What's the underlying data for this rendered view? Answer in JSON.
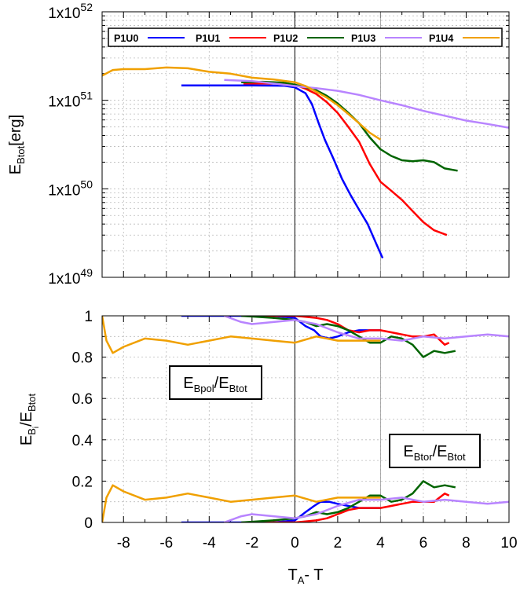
{
  "chart_data": [
    {
      "type": "line",
      "panel": "top",
      "ylabel_main": "E",
      "ylabel_sub": "Btot",
      "ylabel_tail": "[erg]",
      "yscale": "log",
      "ylim": [
        1e+49,
        1e+52
      ],
      "xlim": [
        -9,
        10
      ],
      "yticks": [
        {
          "base": "1x10",
          "exp": "49",
          "value": 1e+49
        },
        {
          "base": "1x10",
          "exp": "50",
          "value": 1e+50
        },
        {
          "base": "1x10",
          "exp": "51",
          "value": 1e+51
        },
        {
          "base": "1x10",
          "exp": "52",
          "value": 1e+52
        }
      ],
      "vlines": [
        0,
        4
      ],
      "legend": [
        "P1U0",
        "P1U1",
        "P1U2",
        "P1U3",
        "P1U4"
      ],
      "legend_position": "top",
      "series": [
        {
          "name": "P1U0",
          "color": "#0000ff",
          "points": [
            [
              -5.3,
              1.47e+51
            ],
            [
              -2,
              1.47e+51
            ],
            [
              -0.5,
              1.46e+51
            ],
            [
              0,
              1.4e+51
            ],
            [
              0.5,
              1.2e+51
            ],
            [
              0.8,
              9e+50
            ],
            [
              1.1,
              5.6e+50
            ],
            [
              1.4,
              3.6e+50
            ],
            [
              1.8,
              2.2e+50
            ],
            [
              2.2,
              1.3e+50
            ],
            [
              2.6,
              8.5e+49
            ],
            [
              3,
              5.8e+49
            ],
            [
              3.4,
              4e+49
            ],
            [
              3.8,
              2.4e+49
            ],
            [
              4.1,
              1.65e+49
            ]
          ]
        },
        {
          "name": "P1U1",
          "color": "#ff0000",
          "points": [
            [
              -2.4,
              1.55e+51
            ],
            [
              -1,
              1.55e+51
            ],
            [
              0,
              1.5e+51
            ],
            [
              0.5,
              1.35e+51
            ],
            [
              1,
              1.18e+51
            ],
            [
              1.5,
              9.5e+50
            ],
            [
              2,
              7.2e+50
            ],
            [
              2.5,
              5e+50
            ],
            [
              3,
              3.4e+50
            ],
            [
              3.5,
              1.9e+50
            ],
            [
              4,
              1.2e+50
            ],
            [
              4.5,
              9.5e+49
            ],
            [
              5,
              7.5e+49
            ],
            [
              5.5,
              5.6e+49
            ],
            [
              6,
              4.2e+49
            ],
            [
              6.5,
              3.4e+49
            ],
            [
              7.1,
              3e+49
            ]
          ]
        },
        {
          "name": "P1U2",
          "color": "#006400",
          "points": [
            [
              -2.5,
              1.6e+51
            ],
            [
              -1.5,
              1.62e+51
            ],
            [
              -0.5,
              1.58e+51
            ],
            [
              0,
              1.5e+51
            ],
            [
              0.5,
              1.4e+51
            ],
            [
              1,
              1.3e+51
            ],
            [
              1.5,
              1.12e+51
            ],
            [
              2,
              9.2e+50
            ],
            [
              2.5,
              7.2e+50
            ],
            [
              3,
              5.5e+50
            ],
            [
              3.5,
              3.8e+50
            ],
            [
              4,
              2.8e+50
            ],
            [
              4.5,
              2.35e+50
            ],
            [
              5,
              2.1e+50
            ],
            [
              5.5,
              2.05e+50
            ],
            [
              6,
              2.1e+50
            ],
            [
              6.5,
              2e+50
            ],
            [
              7,
              1.7e+50
            ],
            [
              7.6,
              1.6e+50
            ]
          ]
        },
        {
          "name": "P1U3",
          "color": "#b884ff",
          "points": [
            [
              -3.3,
              1.7e+51
            ],
            [
              -2,
              1.65e+51
            ],
            [
              -1,
              1.55e+51
            ],
            [
              0,
              1.45e+51
            ],
            [
              1,
              1.37e+51
            ],
            [
              2,
              1.28e+51
            ],
            [
              3,
              1.15e+51
            ],
            [
              4,
              1e+51
            ],
            [
              5,
              8.8e+50
            ],
            [
              6,
              7.6e+50
            ],
            [
              7,
              6.7e+50
            ],
            [
              8,
              5.9e+50
            ],
            [
              9,
              5.4e+50
            ],
            [
              10,
              4.9e+50
            ]
          ]
        },
        {
          "name": "P1U4",
          "color": "#f0a000",
          "points": [
            [
              -9,
              1.9e+51
            ],
            [
              -8.5,
              2.2e+51
            ],
            [
              -8,
              2.25e+51
            ],
            [
              -7,
              2.25e+51
            ],
            [
              -6,
              2.35e+51
            ],
            [
              -5,
              2.3e+51
            ],
            [
              -4,
              2.1e+51
            ],
            [
              -3,
              2e+51
            ],
            [
              -2,
              1.8e+51
            ],
            [
              -1,
              1.72e+51
            ],
            [
              0,
              1.6e+51
            ],
            [
              0.5,
              1.45e+51
            ],
            [
              1,
              1.25e+51
            ],
            [
              1.5,
              1.07e+51
            ],
            [
              2,
              8.8e+50
            ],
            [
              2.5,
              7e+50
            ],
            [
              3,
              5.5e+50
            ],
            [
              3.5,
              4.3e+50
            ],
            [
              4,
              3.6e+50
            ]
          ]
        }
      ]
    },
    {
      "type": "line",
      "panel": "bottom",
      "ylabel_main": "E",
      "ylabel_sub": "B",
      "ylabel_subsub": "i",
      "ylabel_tail": "/E",
      "ylabel_sub2": "Btot",
      "xlabel_main": "T",
      "xlabel_sub": "A",
      "xlabel_tail": "- T",
      "ylim": [
        0,
        1
      ],
      "xlim": [
        -9,
        10
      ],
      "yticks": [
        "0",
        "0.2",
        "0.4",
        "0.6",
        "0.8",
        "1"
      ],
      "xticks": [
        "-8",
        "-6",
        "-4",
        "-2",
        "0",
        "2",
        "4",
        "6",
        "8",
        "10"
      ],
      "vlines": [
        0,
        4
      ],
      "annotations": [
        {
          "main": "E",
          "sub": "Bpol",
          "mid": "/E",
          "sub2": "Btot",
          "target": "upper curves"
        },
        {
          "main": "E",
          "sub": "Btor",
          "mid": "/E",
          "sub2": "Btot",
          "target": "lower curves"
        }
      ],
      "series": [
        {
          "name": "P1U0 pol",
          "color": "#0000ff",
          "points": [
            [
              -5.3,
              1
            ],
            [
              -1,
              1
            ],
            [
              0,
              0.99
            ],
            [
              0.5,
              0.95
            ],
            [
              0.9,
              0.93
            ],
            [
              1.2,
              0.9
            ],
            [
              1.6,
              0.89
            ],
            [
              2,
              0.9
            ],
            [
              2.5,
              0.92
            ],
            [
              3,
              0.93
            ],
            [
              3.5,
              0.93
            ],
            [
              4,
              0.93
            ]
          ]
        },
        {
          "name": "P1U0 tor",
          "color": "#0000ff",
          "points": [
            [
              -5.3,
              0
            ],
            [
              -1,
              0
            ],
            [
              0,
              0.01
            ],
            [
              0.5,
              0.05
            ],
            [
              0.9,
              0.08
            ],
            [
              1.2,
              0.1
            ],
            [
              1.6,
              0.1
            ],
            [
              2,
              0.09
            ],
            [
              2.5,
              0.08
            ],
            [
              3,
              0.07
            ],
            [
              3.5,
              0.07
            ],
            [
              4,
              0.07
            ]
          ]
        },
        {
          "name": "P1U1 pol",
          "color": "#ff0000",
          "points": [
            [
              -2.4,
              1
            ],
            [
              0,
              1
            ],
            [
              1,
              0.99
            ],
            [
              1.5,
              0.98
            ],
            [
              2,
              0.96
            ],
            [
              2.5,
              0.93
            ],
            [
              3,
              0.92
            ],
            [
              3.5,
              0.93
            ],
            [
              4,
              0.93
            ],
            [
              4.5,
              0.92
            ],
            [
              5,
              0.91
            ],
            [
              5.5,
              0.9
            ],
            [
              6,
              0.9
            ],
            [
              6.5,
              0.91
            ],
            [
              7,
              0.86
            ],
            [
              7.2,
              0.87
            ]
          ]
        },
        {
          "name": "P1U1 tor",
          "color": "#ff0000",
          "points": [
            [
              -2.4,
              0
            ],
            [
              0,
              0
            ],
            [
              1,
              0.01
            ],
            [
              1.5,
              0.02
            ],
            [
              2,
              0.04
            ],
            [
              2.5,
              0.06
            ],
            [
              3,
              0.07
            ],
            [
              3.5,
              0.07
            ],
            [
              4,
              0.07
            ],
            [
              4.5,
              0.08
            ],
            [
              5,
              0.09
            ],
            [
              5.5,
              0.1
            ],
            [
              6,
              0.1
            ],
            [
              6.5,
              0.1
            ],
            [
              7,
              0.14
            ],
            [
              7.2,
              0.13
            ]
          ]
        },
        {
          "name": "P1U2 pol",
          "color": "#006400",
          "points": [
            [
              -2.5,
              1
            ],
            [
              -1,
              0.99
            ],
            [
              0,
              0.98
            ],
            [
              0.5,
              0.97
            ],
            [
              1,
              0.95
            ],
            [
              1.5,
              0.96
            ],
            [
              2,
              0.95
            ],
            [
              2.5,
              0.93
            ],
            [
              3,
              0.9
            ],
            [
              3.5,
              0.87
            ],
            [
              4,
              0.87
            ],
            [
              4.5,
              0.9
            ],
            [
              5,
              0.89
            ],
            [
              5.5,
              0.86
            ],
            [
              6,
              0.8
            ],
            [
              6.5,
              0.83
            ],
            [
              7,
              0.82
            ],
            [
              7.5,
              0.83
            ]
          ]
        },
        {
          "name": "P1U2 tor",
          "color": "#006400",
          "points": [
            [
              -2.5,
              0
            ],
            [
              -1,
              0.01
            ],
            [
              0,
              0.02
            ],
            [
              0.5,
              0.03
            ],
            [
              1,
              0.05
            ],
            [
              1.5,
              0.04
            ],
            [
              2,
              0.05
            ],
            [
              2.5,
              0.07
            ],
            [
              3,
              0.1
            ],
            [
              3.5,
              0.13
            ],
            [
              4,
              0.13
            ],
            [
              4.5,
              0.1
            ],
            [
              5,
              0.11
            ],
            [
              5.5,
              0.14
            ],
            [
              6,
              0.2
            ],
            [
              6.5,
              0.17
            ],
            [
              7,
              0.18
            ],
            [
              7.5,
              0.17
            ]
          ]
        },
        {
          "name": "P1U3 pol",
          "color": "#b884ff",
          "points": [
            [
              -3.3,
              1
            ],
            [
              -2.5,
              0.97
            ],
            [
              -2,
              0.96
            ],
            [
              -1,
              0.97
            ],
            [
              0,
              0.98
            ],
            [
              1,
              0.96
            ],
            [
              2,
              0.92
            ],
            [
              3,
              0.89
            ],
            [
              4,
              0.89
            ],
            [
              5,
              0.88
            ],
            [
              6,
              0.9
            ],
            [
              7,
              0.89
            ],
            [
              8,
              0.9
            ],
            [
              9,
              0.91
            ],
            [
              10,
              0.9
            ]
          ]
        },
        {
          "name": "P1U3 tor",
          "color": "#b884ff",
          "points": [
            [
              -3.3,
              0
            ],
            [
              -2.5,
              0.03
            ],
            [
              -2,
              0.04
            ],
            [
              -1,
              0.03
            ],
            [
              0,
              0.02
            ],
            [
              1,
              0.04
            ],
            [
              2,
              0.08
            ],
            [
              3,
              0.11
            ],
            [
              4,
              0.11
            ],
            [
              5,
              0.12
            ],
            [
              6,
              0.1
            ],
            [
              7,
              0.11
            ],
            [
              8,
              0.1
            ],
            [
              9,
              0.09
            ],
            [
              10,
              0.1
            ]
          ]
        },
        {
          "name": "P1U4 pol",
          "color": "#f0a000",
          "points": [
            [
              -9,
              1
            ],
            [
              -8.8,
              0.88
            ],
            [
              -8.5,
              0.82
            ],
            [
              -8,
              0.85
            ],
            [
              -7,
              0.89
            ],
            [
              -6,
              0.88
            ],
            [
              -5,
              0.86
            ],
            [
              -4,
              0.88
            ],
            [
              -3,
              0.9
            ],
            [
              -2,
              0.89
            ],
            [
              -1,
              0.88
            ],
            [
              0,
              0.87
            ],
            [
              1,
              0.9
            ],
            [
              2,
              0.88
            ],
            [
              3,
              0.88
            ],
            [
              4,
              0.88
            ]
          ]
        },
        {
          "name": "P1U4 tor",
          "color": "#f0a000",
          "points": [
            [
              -9,
              0
            ],
            [
              -8.8,
              0.12
            ],
            [
              -8.5,
              0.18
            ],
            [
              -8,
              0.15
            ],
            [
              -7,
              0.11
            ],
            [
              -6,
              0.12
            ],
            [
              -5,
              0.14
            ],
            [
              -4,
              0.12
            ],
            [
              -3,
              0.1
            ],
            [
              -2,
              0.11
            ],
            [
              -1,
              0.12
            ],
            [
              0,
              0.13
            ],
            [
              1,
              0.1
            ],
            [
              2,
              0.12
            ],
            [
              3,
              0.12
            ],
            [
              4,
              0.12
            ]
          ]
        }
      ]
    }
  ]
}
